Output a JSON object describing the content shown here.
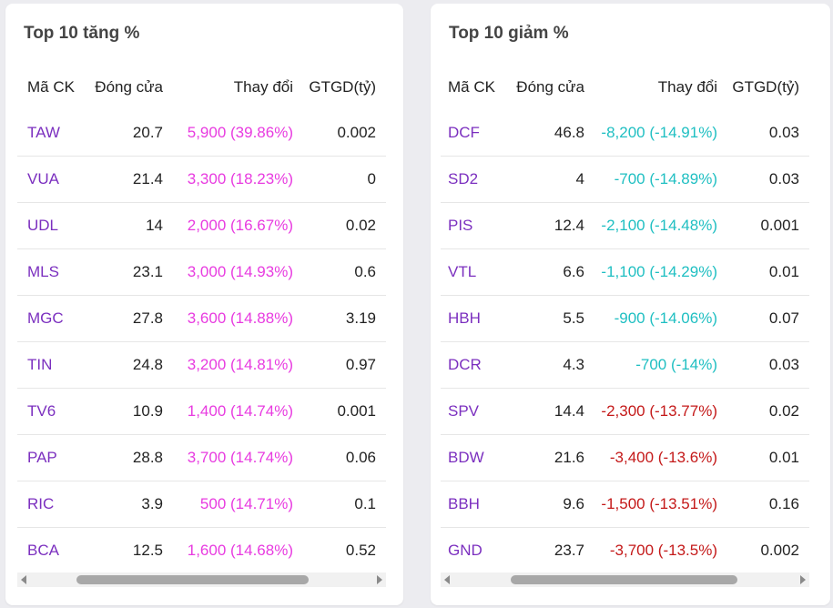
{
  "gainers": {
    "title": "Top 10 tăng %",
    "headers": {
      "symbol": "Mã CK",
      "close": "Đóng cửa",
      "change": "Thay đổi",
      "value": "GTGD(tỷ)"
    },
    "rows": [
      {
        "symbol": "TAW",
        "close": "20.7",
        "change": "5,900 (39.86%)",
        "value": "0.002"
      },
      {
        "symbol": "VUA",
        "close": "21.4",
        "change": "3,300 (18.23%)",
        "value": "0"
      },
      {
        "symbol": "UDL",
        "close": "14",
        "change": "2,000 (16.67%)",
        "value": "0.02"
      },
      {
        "symbol": "MLS",
        "close": "23.1",
        "change": "3,000 (14.93%)",
        "value": "0.6"
      },
      {
        "symbol": "MGC",
        "close": "27.8",
        "change": "3,600 (14.88%)",
        "value": "3.19"
      },
      {
        "symbol": "TIN",
        "close": "24.8",
        "change": "3,200 (14.81%)",
        "value": "0.97"
      },
      {
        "symbol": "TV6",
        "close": "10.9",
        "change": "1,400 (14.74%)",
        "value": "0.001"
      },
      {
        "symbol": "PAP",
        "close": "28.8",
        "change": "3,700 (14.74%)",
        "value": "0.06"
      },
      {
        "symbol": "RIC",
        "close": "3.9",
        "change": "500 (14.71%)",
        "value": "0.1"
      },
      {
        "symbol": "BCA",
        "close": "12.5",
        "change": "1,600 (14.68%)",
        "value": "0.52"
      }
    ]
  },
  "losers": {
    "title": "Top 10 giảm %",
    "headers": {
      "symbol": "Mã CK",
      "close": "Đóng cửa",
      "change": "Thay đổi",
      "value": "GTGD(tỷ)"
    },
    "rows": [
      {
        "symbol": "DCF",
        "close": "46.8",
        "change": "-8,200 (-14.91%)",
        "value": "0.03",
        "status": "floor"
      },
      {
        "symbol": "SD2",
        "close": "4",
        "change": "-700 (-14.89%)",
        "value": "0.03",
        "status": "floor"
      },
      {
        "symbol": "PIS",
        "close": "12.4",
        "change": "-2,100 (-14.48%)",
        "value": "0.001",
        "status": "floor"
      },
      {
        "symbol": "VTL",
        "close": "6.6",
        "change": "-1,100 (-14.29%)",
        "value": "0.01",
        "status": "floor"
      },
      {
        "symbol": "HBH",
        "close": "5.5",
        "change": "-900 (-14.06%)",
        "value": "0.07",
        "status": "floor"
      },
      {
        "symbol": "DCR",
        "close": "4.3",
        "change": "-700 (-14%)",
        "value": "0.03",
        "status": "floor"
      },
      {
        "symbol": "SPV",
        "close": "14.4",
        "change": "-2,300 (-13.77%)",
        "value": "0.02",
        "status": "down"
      },
      {
        "symbol": "BDW",
        "close": "21.6",
        "change": "-3,400 (-13.6%)",
        "value": "0.01",
        "status": "down"
      },
      {
        "symbol": "BBH",
        "close": "9.6",
        "change": "-1,500 (-13.51%)",
        "value": "0.16",
        "status": "down"
      },
      {
        "symbol": "GND",
        "close": "23.7",
        "change": "-3,700 (-13.5%)",
        "value": "0.002",
        "status": "down"
      }
    ]
  },
  "colors": {
    "symbol": "#7b2fbf",
    "ceiling_up": "#e83be0",
    "floor_down": "#1fbfc2",
    "down": "#c41919"
  },
  "icons": {
    "scroll_left": "scroll-left-arrow-icon",
    "scroll_right": "scroll-right-arrow-icon"
  }
}
